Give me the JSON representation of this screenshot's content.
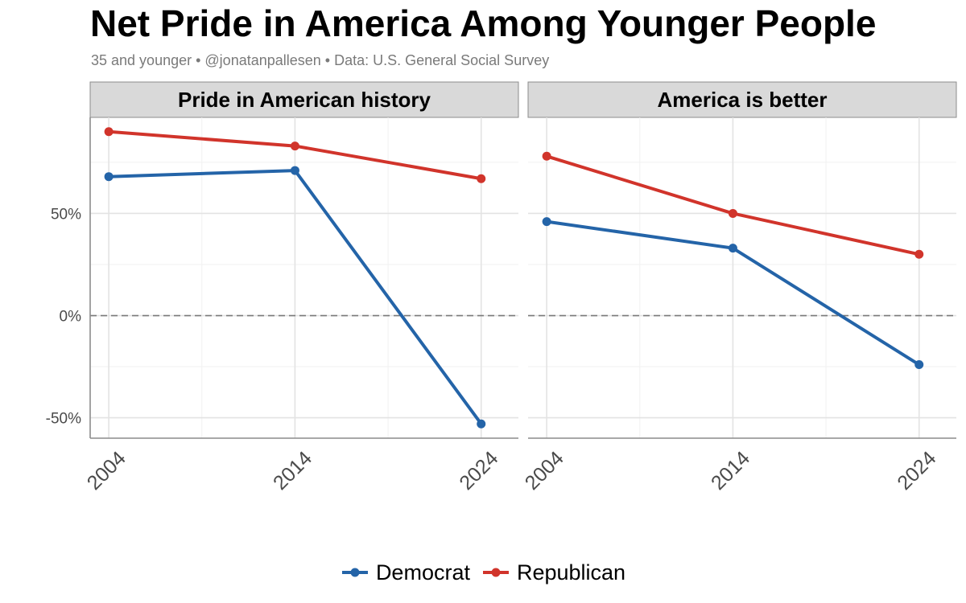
{
  "title": "Net Pride in America Among Younger People",
  "subtitle": "35 and younger • @jonatanpallesen • Data: U.S. General Social Survey",
  "colors": {
    "Democrat": "#2464a8",
    "Republican": "#d1342b"
  },
  "chart_data": {
    "type": "line",
    "x": [
      2004,
      2014,
      2024
    ],
    "y_ticks": [
      "-50%",
      "0%",
      "50%"
    ],
    "x_ticks": [
      "2004",
      "2014",
      "2024"
    ],
    "ylim": [
      -60,
      97
    ],
    "xlim": [
      2003,
      2026
    ],
    "y_unit": "%",
    "grid": true,
    "reference_line": {
      "y": 0,
      "style": "dashed"
    },
    "legend": {
      "position": "bottom",
      "entries": [
        "Democrat",
        "Republican"
      ]
    },
    "panels": [
      {
        "title": "Pride in American history",
        "series": [
          {
            "name": "Democrat",
            "values": [
              68,
              71,
              -53
            ]
          },
          {
            "name": "Republican",
            "values": [
              90,
              83,
              67
            ]
          }
        ]
      },
      {
        "title": "America is better",
        "series": [
          {
            "name": "Democrat",
            "values": [
              46,
              33,
              -24
            ]
          },
          {
            "name": "Republican",
            "values": [
              78,
              50,
              30
            ]
          }
        ]
      }
    ]
  }
}
